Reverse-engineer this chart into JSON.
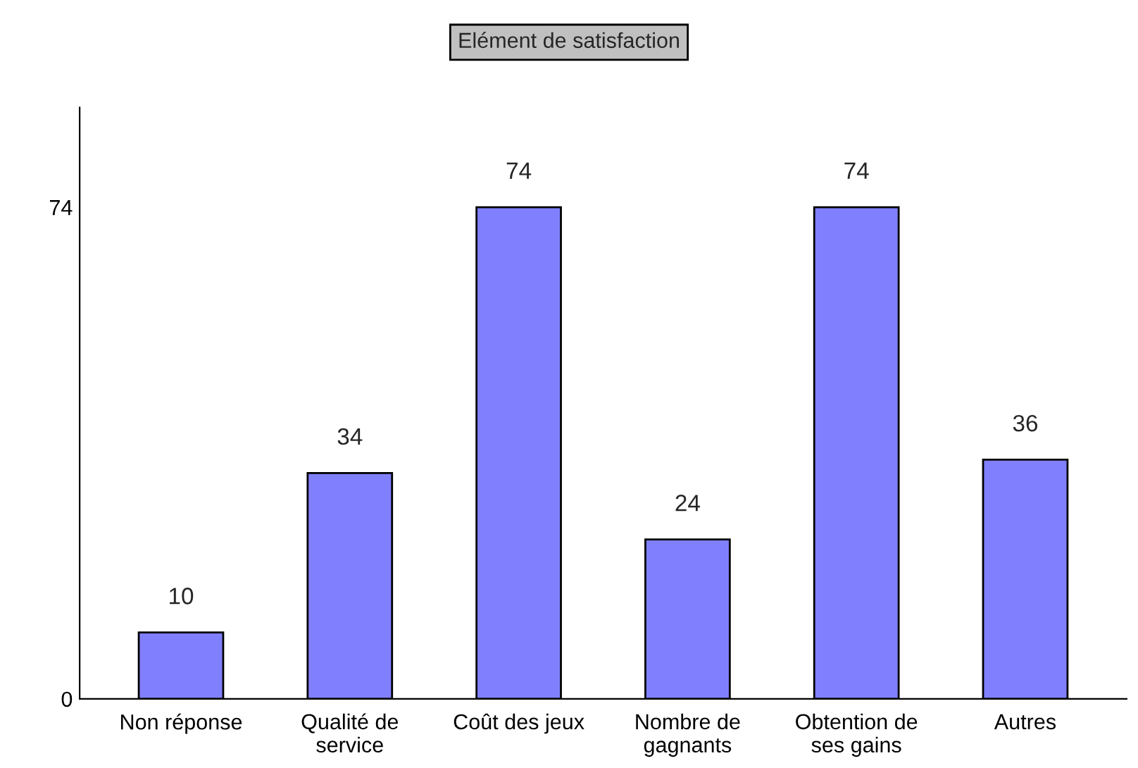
{
  "chart_data": {
    "type": "bar",
    "title": "Elément de satisfaction",
    "categories": [
      "Non réponse",
      "Qualité de\nservice",
      "Coût des jeux",
      "Nombre de\ngagnants",
      "Obtention de\nses gains",
      "Autres"
    ],
    "values": [
      10,
      34,
      74,
      24,
      74,
      36
    ],
    "color": "#8080ff",
    "ylim": [
      0,
      89
    ],
    "yticks": [
      0,
      74
    ],
    "grid": false,
    "data_labels": true
  }
}
